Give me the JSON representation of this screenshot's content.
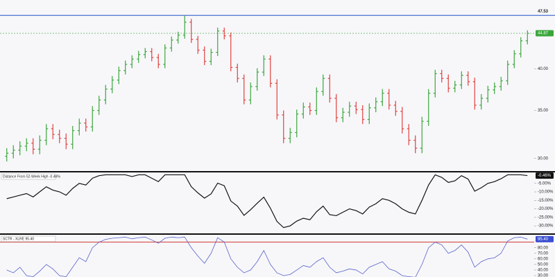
{
  "chart_data": [
    {
      "type": "ohlc",
      "log_scale": true,
      "up_color": "#3aa63a",
      "down_color": "#e0413c",
      "ylim": [
        28.8,
        49.5
      ],
      "yticks": [
        {
          "value": 30,
          "label": "30.00"
        },
        {
          "value": 35,
          "label": "35.00"
        },
        {
          "value": 40,
          "label": "40.00"
        }
      ],
      "high_line": {
        "value": 47.53,
        "color": "#4a6fd6"
      },
      "last": {
        "value": 44.87,
        "color": "#3aa63a"
      },
      "open": [
        30.2,
        30.5,
        30.8,
        31.2,
        31.5,
        30.9,
        31.8,
        33.0,
        32.4,
        32.0,
        31.4,
        32.8,
        33.6,
        33.2,
        35.0,
        36.2,
        37.5,
        38.6,
        39.8,
        40.6,
        41.3,
        41.9,
        42.3,
        41.5,
        40.6,
        42.8,
        43.9,
        44.6,
        46.5,
        44.0,
        42.5,
        41.0,
        42.2,
        45.2,
        44.5,
        40.2,
        38.8,
        36.2,
        37.8,
        39.6,
        41.3,
        38.2,
        34.5,
        32.0,
        32.6,
        34.6,
        35.4,
        35.0,
        37.2,
        38.8,
        36.4,
        34.2,
        34.8,
        35.5,
        35.1,
        34.0,
        35.3,
        36.0,
        37.0,
        35.6,
        34.9,
        33.0,
        31.8,
        31.0,
        33.8,
        37.0,
        39.4,
        38.8,
        37.6,
        38.0,
        39.2,
        38.4,
        35.6,
        36.4,
        37.4,
        37.8,
        38.5,
        40.6,
        42.0,
        43.8
      ],
      "high": [
        31.0,
        31.3,
        31.7,
        32.0,
        32.0,
        32.3,
        33.5,
        33.5,
        32.9,
        32.5,
        33.3,
        34.1,
        34.1,
        35.5,
        36.7,
        38.0,
        39.1,
        40.3,
        41.1,
        41.8,
        42.4,
        42.8,
        42.8,
        42.0,
        43.3,
        44.4,
        45.1,
        47.53,
        47.0,
        44.5,
        43.0,
        42.7,
        45.7,
        45.7,
        45.0,
        40.7,
        39.3,
        38.3,
        40.1,
        41.8,
        41.8,
        38.7,
        35.0,
        33.1,
        35.1,
        35.9,
        35.9,
        37.7,
        39.3,
        39.3,
        36.9,
        35.3,
        36.0,
        36.0,
        35.6,
        35.8,
        36.5,
        37.5,
        37.5,
        36.1,
        35.4,
        33.5,
        32.3,
        34.3,
        37.5,
        39.9,
        39.9,
        39.3,
        38.5,
        39.7,
        39.7,
        38.9,
        36.9,
        37.9,
        38.3,
        39.0,
        41.1,
        42.5,
        44.3,
        45.3
      ],
      "low": [
        29.7,
        30.0,
        30.3,
        30.7,
        30.4,
        30.4,
        31.3,
        31.9,
        31.5,
        30.9,
        30.9,
        32.3,
        32.7,
        32.7,
        34.5,
        35.7,
        37.0,
        38.1,
        39.3,
        40.1,
        40.8,
        41.4,
        41.0,
        40.1,
        40.1,
        42.3,
        43.4,
        44.1,
        43.5,
        42.0,
        40.5,
        40.5,
        41.7,
        44.0,
        39.7,
        38.3,
        35.7,
        35.7,
        37.3,
        39.1,
        37.7,
        34.0,
        31.5,
        31.5,
        32.1,
        34.1,
        34.5,
        34.5,
        36.7,
        35.9,
        33.7,
        33.7,
        34.3,
        34.6,
        33.5,
        33.5,
        34.8,
        35.5,
        35.1,
        34.4,
        32.5,
        31.3,
        30.5,
        30.5,
        33.3,
        36.5,
        38.3,
        37.1,
        37.1,
        37.5,
        37.9,
        35.1,
        35.1,
        35.9,
        36.9,
        37.3,
        38.0,
        40.1,
        41.5,
        43.3
      ],
      "close": [
        30.5,
        30.8,
        31.2,
        31.5,
        30.9,
        31.8,
        33.0,
        32.4,
        32.0,
        31.4,
        32.8,
        33.6,
        33.2,
        35.0,
        36.2,
        37.5,
        38.6,
        39.8,
        40.6,
        41.3,
        41.9,
        42.3,
        41.5,
        40.6,
        42.8,
        43.9,
        44.6,
        46.5,
        44.0,
        42.5,
        41.0,
        42.2,
        45.2,
        44.5,
        40.2,
        38.8,
        36.2,
        37.8,
        39.6,
        41.3,
        38.2,
        34.5,
        32.0,
        32.6,
        34.6,
        35.4,
        35.0,
        37.2,
        38.8,
        36.4,
        34.2,
        34.8,
        35.5,
        35.1,
        34.0,
        35.3,
        36.0,
        37.0,
        35.6,
        34.9,
        33.0,
        31.8,
        31.0,
        33.8,
        37.0,
        39.4,
        38.8,
        37.6,
        38.0,
        39.2,
        38.4,
        35.6,
        36.4,
        37.4,
        37.8,
        38.5,
        40.6,
        42.0,
        43.8,
        44.87
      ]
    },
    {
      "type": "line",
      "title": "Distance From 52-Week High -0.46%",
      "color": "#111111",
      "ylim": [
        -34,
        1
      ],
      "yticks": [
        {
          "value": -5,
          "label": "-5.00%"
        },
        {
          "value": -10,
          "label": "-10.00%"
        },
        {
          "value": -15,
          "label": "-15.00%"
        },
        {
          "value": -20,
          "label": "-20.00%"
        },
        {
          "value": -25,
          "label": "-25.00%"
        },
        {
          "value": -30,
          "label": "-30.00%"
        }
      ],
      "last": {
        "value": -0.46,
        "label": "-0.46%",
        "color": "#111111"
      },
      "values": [
        -14,
        -13,
        -12,
        -11,
        -13,
        -10,
        -7,
        -9,
        -10,
        -12,
        -8,
        -5,
        -6,
        -2,
        -0.5,
        0,
        0,
        0,
        0,
        -1,
        0,
        0,
        -2,
        -4,
        0,
        0,
        0,
        0,
        -7,
        -10.6,
        -13.7,
        -11.2,
        -4.9,
        -6.4,
        -15.4,
        -18.4,
        -23.8,
        -20.5,
        -16.7,
        -13.1,
        -19.6,
        -27.4,
        -31,
        -30,
        -27.2,
        -25.5,
        -26.4,
        -21.7,
        -18.4,
        -23.4,
        -24,
        -22,
        -20,
        -21,
        -23,
        -19,
        -17,
        -14,
        -15,
        -17,
        -20,
        -22,
        -23,
        -15,
        -6,
        0,
        -1.5,
        -4.5,
        -3.5,
        -0.5,
        -2.5,
        -9.6,
        -7.6,
        -5,
        -4,
        -2.3,
        0,
        0,
        0,
        -0.46
      ]
    },
    {
      "type": "line",
      "title": "SCTR - XLRE 95.40",
      "color": "#5560c8",
      "ylim": [
        25,
        102
      ],
      "yticks": [
        {
          "value": 30,
          "label": "30.00"
        },
        {
          "value": 40,
          "label": "40.00"
        },
        {
          "value": 50,
          "label": "50.00"
        },
        {
          "value": 60,
          "label": "60.00"
        },
        {
          "value": 70,
          "label": "70.00"
        },
        {
          "value": 80,
          "label": "80.00"
        }
      ],
      "ref_line": {
        "value": 90,
        "color": "#d0342c"
      },
      "last": {
        "value": 95.4,
        "label": "95.40",
        "color": "#3b4fd0"
      },
      "values": [
        40,
        35,
        45,
        30,
        28,
        38,
        50,
        42,
        30,
        28,
        45,
        62,
        55,
        80,
        90,
        95,
        97,
        98,
        99,
        96,
        98,
        99,
        94,
        88,
        97,
        99,
        98,
        99,
        80,
        65,
        52,
        70,
        98,
        90,
        60,
        45,
        35,
        40,
        55,
        75,
        50,
        35,
        30,
        32,
        40,
        48,
        45,
        55,
        62,
        45,
        35,
        38,
        42,
        40,
        33,
        45,
        50,
        55,
        42,
        38,
        30,
        28,
        27,
        50,
        80,
        90,
        85,
        70,
        75,
        85,
        72,
        45,
        55,
        60,
        62,
        70,
        92,
        98,
        99,
        95.4
      ]
    }
  ]
}
